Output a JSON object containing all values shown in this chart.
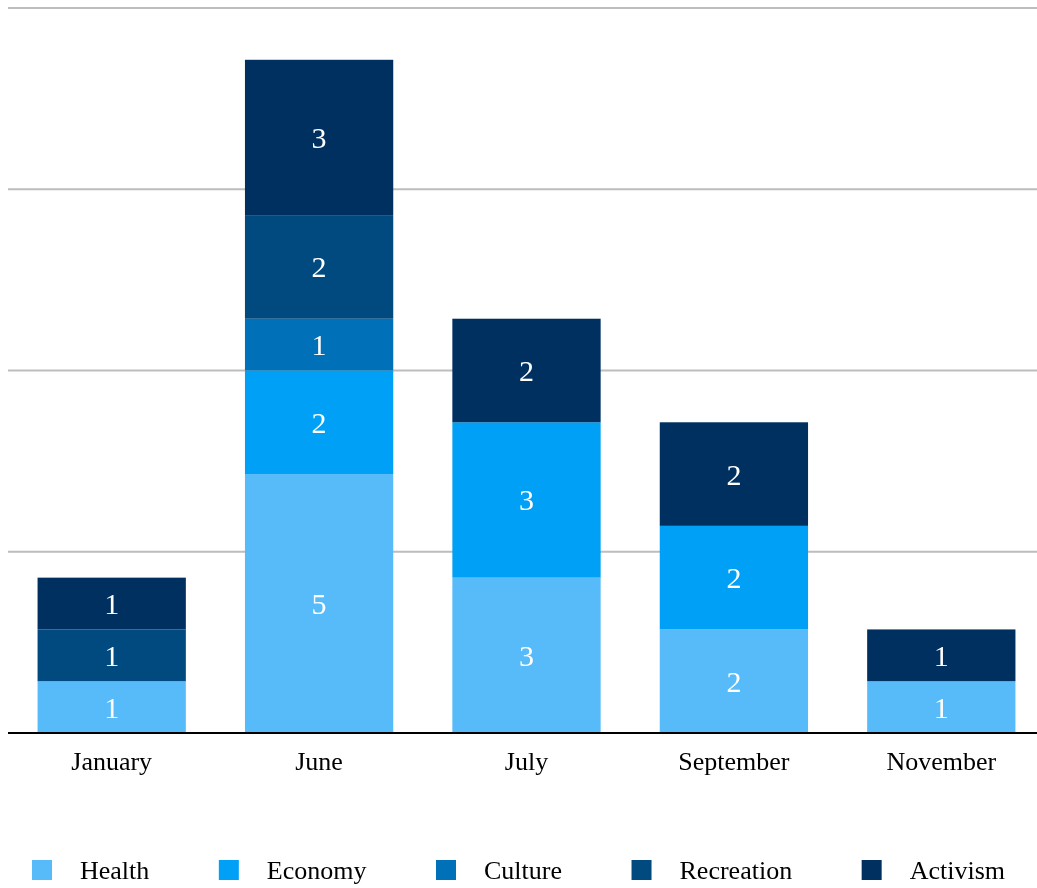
{
  "chart_data": {
    "type": "bar",
    "stacked": true,
    "categories": [
      "January",
      "June",
      "July",
      "September",
      "November"
    ],
    "ylim": [
      0,
      14
    ],
    "yticks": [
      {
        "value": 0,
        "label": null
      },
      {
        "value": 3.5,
        "label": null
      },
      {
        "value": 7,
        "label": null
      },
      {
        "value": 10.5,
        "label": null
      },
      {
        "value": 14,
        "label": null
      }
    ],
    "grid": "y",
    "legend": "bottom",
    "data_labels": true,
    "tick_labels": "x",
    "series": [
      {
        "name": "Health",
        "color": "#57bbfa",
        "values": [
          1,
          5,
          3,
          2,
          1
        ]
      },
      {
        "name": "Economy",
        "color": "#00a0f6",
        "values": [
          null,
          2,
          3,
          2,
          null
        ]
      },
      {
        "name": "Culture",
        "color": "#0070b8",
        "values": [
          null,
          1,
          null,
          null,
          null
        ]
      },
      {
        "name": "Recreation",
        "color": "#004a80",
        "values": [
          1,
          2,
          null,
          null,
          null
        ]
      },
      {
        "name": "Activism",
        "color": "#003060",
        "values": [
          1,
          3,
          2,
          2,
          1
        ]
      }
    ]
  }
}
